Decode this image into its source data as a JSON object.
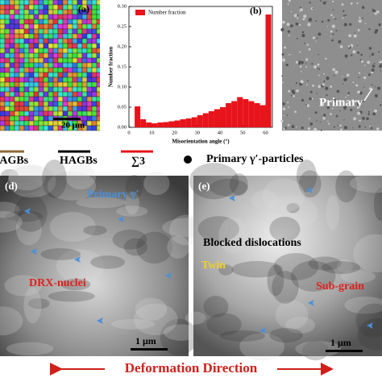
{
  "chart_data": {
    "type": "histogram",
    "legend": "Number fraction",
    "color": "#e8141b",
    "xlabel": "Misorientation angle (°)",
    "ylabel": "Number fraction",
    "bins": [
      2.5,
      5,
      7.5,
      10,
      12.5,
      15,
      17.5,
      20,
      22.5,
      25,
      27.5,
      30,
      32.5,
      35,
      37.5,
      40,
      42.5,
      45,
      47.5,
      50,
      52.5,
      55,
      57.5,
      60,
      62.5
    ],
    "values": [
      0.052,
      0.02,
      0.012,
      0.01,
      0.012,
      0.013,
      0.015,
      0.017,
      0.02,
      0.022,
      0.025,
      0.03,
      0.035,
      0.04,
      0.045,
      0.05,
      0.06,
      0.065,
      0.075,
      0.07,
      0.065,
      0.06,
      0.055,
      0.28
    ],
    "xlim": [
      0,
      63
    ],
    "xticks": [
      0,
      10,
      20,
      30,
      40,
      50,
      60
    ],
    "ylim": [
      0,
      0.3
    ],
    "yticks": [
      {
        "value": 0,
        "label": "0.00"
      },
      {
        "value": 0.05,
        "label": "0.05"
      },
      {
        "value": 0.1,
        "label": "0.10"
      },
      {
        "value": 0.15,
        "label": "0.15"
      },
      {
        "value": 0.2,
        "label": "0.20"
      },
      {
        "value": 0.25,
        "label": "0.25"
      },
      {
        "value": 0.3,
        "label": "0.30"
      }
    ]
  },
  "panels": {
    "a": {
      "label": "(a)",
      "scale": "20 μm"
    },
    "b": {
      "label": "(b)"
    },
    "c": {
      "annotation": "Primary"
    },
    "d": {
      "label": "(d)",
      "annotations": [
        "Primary γ′",
        "DRX-nuclei"
      ],
      "scale": "1 μm"
    },
    "e": {
      "label": "(e)",
      "annotations": [
        "Blocked dislocations",
        "Twin",
        "Sub-grain"
      ],
      "scale": "1 μm"
    }
  },
  "legend": [
    "LAGBs",
    "HAGBs",
    "∑3",
    "Primary γ′-particles"
  ],
  "footer": "Deformation Direction"
}
